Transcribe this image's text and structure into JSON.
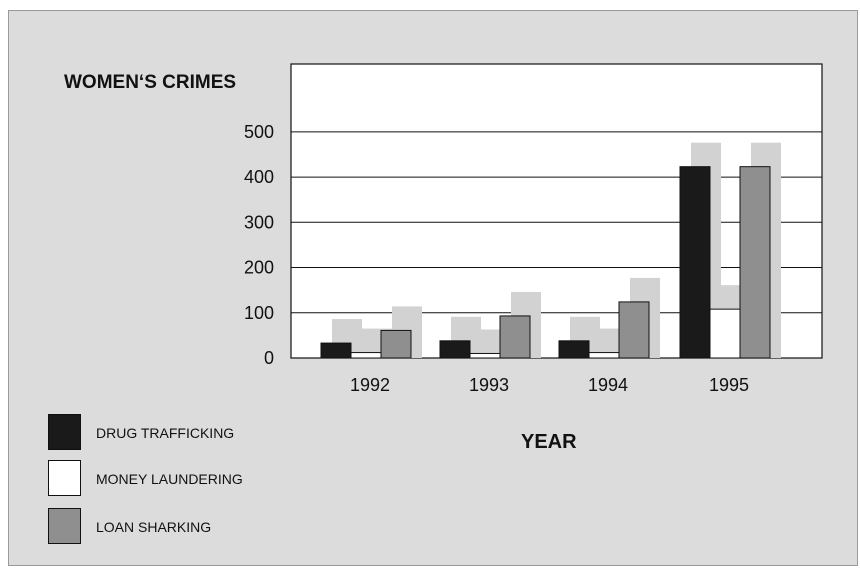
{
  "chart_data": {
    "type": "bar",
    "title": "",
    "ylabel": "WOMEN‘S CRIMES",
    "xlabel": "YEAR",
    "categories": [
      "1992",
      "1993",
      "1994",
      "1995"
    ],
    "series": [
      {
        "name": "DRUG TRAFFICKING",
        "values": [
          33,
          38,
          38,
          423
        ]
      },
      {
        "name": "MONEY LAUNDERING",
        "values": [
          12,
          10,
          12,
          108
        ]
      },
      {
        "name": "LOAN SHARKING",
        "values": [
          61,
          93,
          124,
          423
        ]
      }
    ],
    "yticks": [
      0,
      100,
      200,
      300,
      400,
      500
    ],
    "ylim": [
      0,
      650
    ],
    "grid": true,
    "legend": "bottom-left",
    "colors": {
      "DRUG TRAFFICKING": "#1a1a1a",
      "MONEY LAUNDERING": "#ffffff",
      "LOAN SHARKING": "#8f8f8f",
      "shadow": "#d2d2d2",
      "background": "#dcdcdc"
    }
  }
}
